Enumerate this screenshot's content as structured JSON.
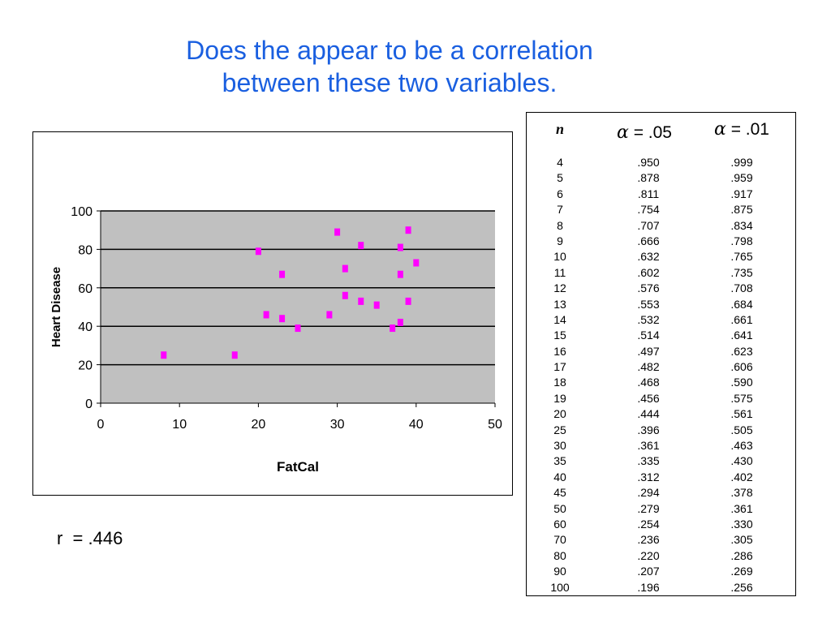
{
  "title": {
    "line1": "Does the appear to be a correlation",
    "line2": "between these two variables."
  },
  "r_text": "r  = .446",
  "colors": {
    "title": "#1a5fe0",
    "plot_background": "#c0c0c0",
    "marker": "#ff00ff"
  },
  "chart_data": {
    "type": "scatter",
    "xlabel": "FatCal",
    "ylabel": "Heart Disease",
    "xlim": [
      0,
      50
    ],
    "ylim": [
      0,
      100
    ],
    "xticks": [
      0,
      10,
      20,
      30,
      40,
      50
    ],
    "yticks": [
      0,
      20,
      40,
      60,
      80,
      100
    ],
    "grid": "horizontal",
    "legend": "none",
    "points": [
      {
        "x": 8,
        "y": 25
      },
      {
        "x": 17,
        "y": 25
      },
      {
        "x": 20,
        "y": 79
      },
      {
        "x": 21,
        "y": 46
      },
      {
        "x": 23,
        "y": 44
      },
      {
        "x": 23,
        "y": 67
      },
      {
        "x": 25,
        "y": 39
      },
      {
        "x": 29,
        "y": 46
      },
      {
        "x": 30,
        "y": 89
      },
      {
        "x": 31,
        "y": 56
      },
      {
        "x": 31,
        "y": 70
      },
      {
        "x": 33,
        "y": 82
      },
      {
        "x": 33,
        "y": 53
      },
      {
        "x": 35,
        "y": 51
      },
      {
        "x": 37,
        "y": 39
      },
      {
        "x": 38,
        "y": 42
      },
      {
        "x": 38,
        "y": 67
      },
      {
        "x": 38,
        "y": 81
      },
      {
        "x": 39,
        "y": 90
      },
      {
        "x": 39,
        "y": 53
      },
      {
        "x": 40,
        "y": 73
      }
    ]
  },
  "critical_table": {
    "headers": {
      "n": "n",
      "alpha_symbol": "α",
      "a05": " = .05",
      "a01": " = .01"
    },
    "rows": [
      [
        "4",
        ".950",
        ".999"
      ],
      [
        "5",
        ".878",
        ".959"
      ],
      [
        "6",
        ".811",
        ".917"
      ],
      [
        "7",
        ".754",
        ".875"
      ],
      [
        "8",
        ".707",
        ".834"
      ],
      [
        "9",
        ".666",
        ".798"
      ],
      [
        "10",
        ".632",
        ".765"
      ],
      [
        "11",
        ".602",
        ".735"
      ],
      [
        "12",
        ".576",
        ".708"
      ],
      [
        "13",
        ".553",
        ".684"
      ],
      [
        "14",
        ".532",
        ".661"
      ],
      [
        "15",
        ".514",
        ".641"
      ],
      [
        "16",
        ".497",
        ".623"
      ],
      [
        "17",
        ".482",
        ".606"
      ],
      [
        "18",
        ".468",
        ".590"
      ],
      [
        "19",
        ".456",
        ".575"
      ],
      [
        "20",
        ".444",
        ".561"
      ],
      [
        "25",
        ".396",
        ".505"
      ],
      [
        "30",
        ".361",
        ".463"
      ],
      [
        "35",
        ".335",
        ".430"
      ],
      [
        "40",
        ".312",
        ".402"
      ],
      [
        "45",
        ".294",
        ".378"
      ],
      [
        "50",
        ".279",
        ".361"
      ],
      [
        "60",
        ".254",
        ".330"
      ],
      [
        "70",
        ".236",
        ".305"
      ],
      [
        "80",
        ".220",
        ".286"
      ],
      [
        "90",
        ".207",
        ".269"
      ],
      [
        "100",
        ".196",
        ".256"
      ]
    ]
  }
}
